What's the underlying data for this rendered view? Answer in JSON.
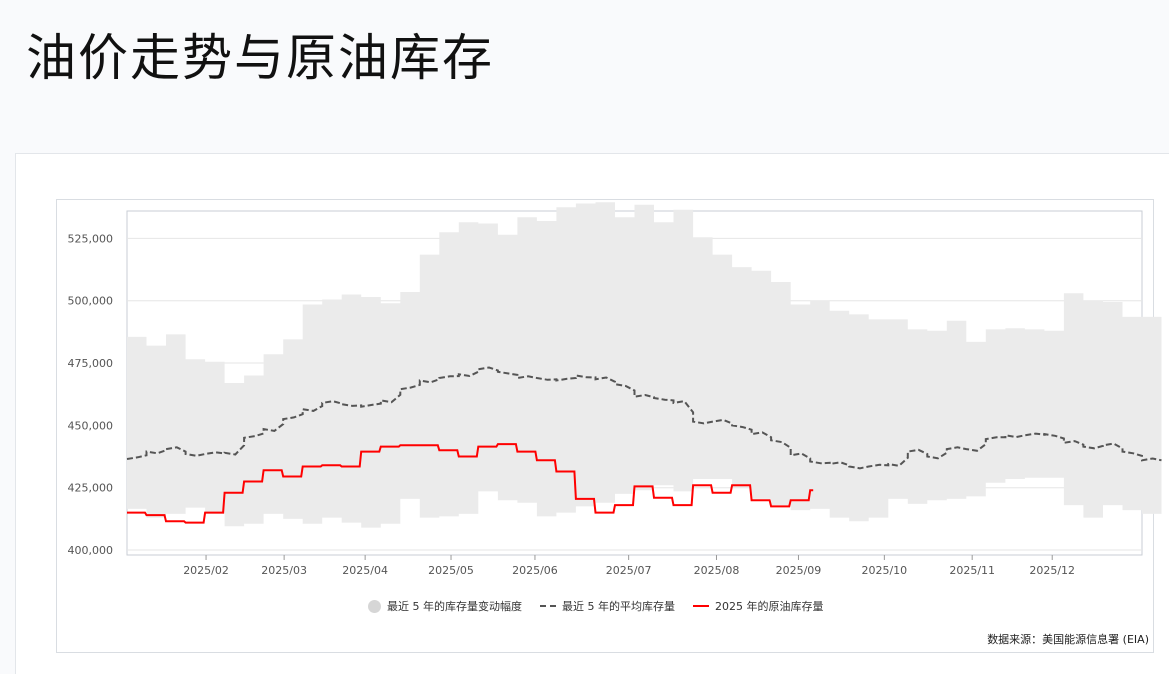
{
  "page": {
    "title": "油价走势与原油库存"
  },
  "legend": {
    "band": "最近 5 年的库存量变动幅度",
    "avg": "最近 5 年的平均库存量",
    "current": "2025 年的原油库存量"
  },
  "source": "数据来源：美国能源信息署 (EIA)",
  "colors": {
    "band": "#ebebeb",
    "avg": "#555555",
    "current": "#ff0000",
    "grid": "#e6e6e6"
  },
  "chart_data": {
    "type": "area",
    "ylim": [
      398000,
      536000
    ],
    "yticks": [
      400000,
      425000,
      450000,
      475000,
      500000,
      525000
    ],
    "ytick_labels": [
      "400,000",
      "425,000",
      "450,000",
      "475,000",
      "500,000",
      "525,000"
    ],
    "xlim": [
      0,
      52
    ],
    "xticks": [
      {
        "pos": 4.05,
        "label": "2025/02"
      },
      {
        "pos": 8.05,
        "label": "2025/03"
      },
      {
        "pos": 12.2,
        "label": "2025/04"
      },
      {
        "pos": 16.6,
        "label": "2025/05"
      },
      {
        "pos": 20.9,
        "label": "2025/06"
      },
      {
        "pos": 25.7,
        "label": "2025/07"
      },
      {
        "pos": 30.2,
        "label": "2025/08"
      },
      {
        "pos": 34.4,
        "label": "2025/09"
      },
      {
        "pos": 38.8,
        "label": "2025/10"
      },
      {
        "pos": 43.3,
        "label": "2025/11"
      },
      {
        "pos": 47.4,
        "label": "2025/12"
      }
    ],
    "series": [
      {
        "name": "最近 5 年的库存量变动幅度",
        "type": "band",
        "upper": [
          485500,
          482000,
          486500,
          476500,
          475500,
          467000,
          470000,
          478500,
          484500,
          498500,
          500500,
          502500,
          501500,
          499000,
          503500,
          518500,
          527500,
          531500,
          531000,
          526500,
          533500,
          532000,
          537500,
          539000,
          539500,
          533500,
          538500,
          531500,
          536500,
          525500,
          518500,
          513500,
          512000,
          507500,
          498500,
          500000,
          496000,
          494500,
          492500,
          492500,
          488500,
          488000,
          492000,
          483500,
          488500,
          489000,
          488500,
          488000,
          503000,
          500000,
          499500,
          493500,
          493500
        ],
        "lower": [
          416500,
          413000,
          414500,
          417000,
          414500,
          409500,
          410500,
          414500,
          412500,
          410500,
          413000,
          411000,
          409000,
          410500,
          420500,
          413000,
          413500,
          414500,
          423500,
          420000,
          419000,
          413500,
          415000,
          417500,
          419000,
          422500,
          424000,
          426000,
          423500,
          428500,
          428500,
          425000,
          420500,
          418000,
          416000,
          416500,
          413000,
          411500,
          413000,
          420500,
          418500,
          420000,
          420500,
          421500,
          427000,
          428500,
          429000,
          429000,
          418000,
          413000,
          418000,
          416000,
          414500
        ]
      },
      {
        "name": "最近 5 年的平均库存量",
        "type": "line",
        "values": [
          436500,
          439500,
          440500,
          438500,
          438500,
          439000,
          445000,
          448500,
          452500,
          456500,
          459000,
          458500,
          457500,
          460000,
          464500,
          468000,
          469000,
          470500,
          472500,
          471500,
          469000,
          469000,
          468000,
          470000,
          468500,
          466500,
          461500,
          461000,
          459000,
          451500,
          451500,
          450000,
          446500,
          444000,
          438000,
          435500,
          434500,
          433500,
          433500,
          434500,
          439500,
          437500,
          440500,
          440500,
          444500,
          446000,
          446000,
          446500,
          443000,
          441500,
          442000,
          439500,
          436000
        ]
      },
      {
        "name": "2025 年的原油库存量",
        "type": "line",
        "values": [
          415000,
          414000,
          411500,
          411000,
          415000,
          423000,
          427500,
          432000,
          429500,
          433500,
          434000,
          433500,
          439500,
          441500,
          442000,
          442000,
          440000,
          437500,
          441500,
          442500,
          439500,
          436000,
          431500,
          420500,
          415000,
          418000,
          425500,
          421000,
          418000,
          426000,
          423000,
          426000,
          420000,
          417500,
          420000,
          424000
        ]
      }
    ],
    "legend_position": "bottom"
  }
}
